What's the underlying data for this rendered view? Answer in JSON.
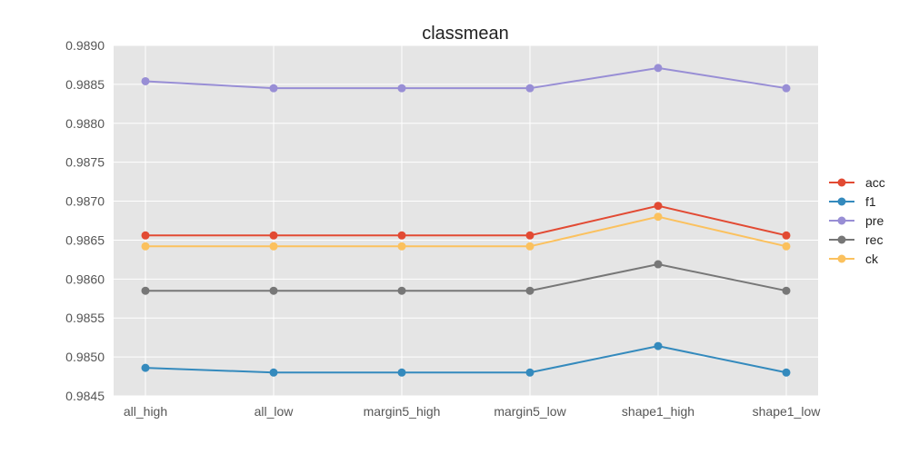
{
  "chart_data": {
    "type": "line",
    "title": "classmean",
    "xlabel": "",
    "ylabel": "",
    "categories": [
      "all_high",
      "all_low",
      "margin5_high",
      "margin5_low",
      "shape1_high",
      "shape1_low"
    ],
    "ylim": [
      0.9845,
      0.989
    ],
    "yticks": [
      "0.9845",
      "0.9850",
      "0.9855",
      "0.9860",
      "0.9865",
      "0.9870",
      "0.9875",
      "0.9880",
      "0.9885",
      "0.9890"
    ],
    "grid": true,
    "legend_position": "right",
    "series": [
      {
        "name": "acc",
        "color": "#E24A33",
        "values": [
          0.98656,
          0.98656,
          0.98656,
          0.98656,
          0.98694,
          0.98656
        ]
      },
      {
        "name": "f1",
        "color": "#348ABD",
        "values": [
          0.98486,
          0.9848,
          0.9848,
          0.9848,
          0.98514,
          0.9848
        ]
      },
      {
        "name": "pre",
        "color": "#988ED5",
        "values": [
          0.98854,
          0.98845,
          0.98845,
          0.98845,
          0.98871,
          0.98845
        ]
      },
      {
        "name": "rec",
        "color": "#777777",
        "values": [
          0.98585,
          0.98585,
          0.98585,
          0.98585,
          0.98619,
          0.98585
        ]
      },
      {
        "name": "ck",
        "color": "#FBC15E",
        "values": [
          0.98642,
          0.98642,
          0.98642,
          0.98642,
          0.9868,
          0.98642
        ]
      }
    ]
  }
}
